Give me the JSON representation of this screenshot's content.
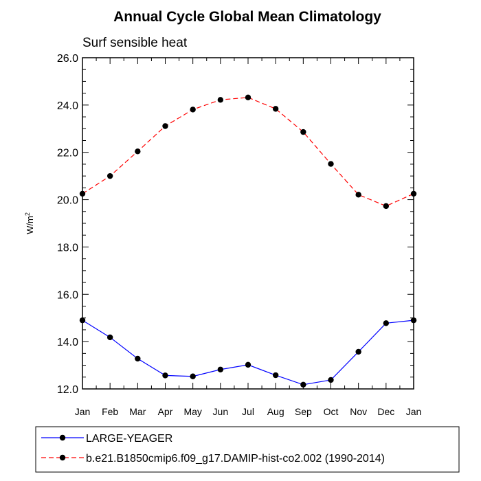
{
  "chart_data": {
    "type": "line",
    "title": "Annual Cycle Global Mean Climatology",
    "subtitle": "Surf sensible heat",
    "ylabel": "W/m",
    "ylabel_sup": "2",
    "xlabel": "",
    "ylim": [
      12.0,
      26.0
    ],
    "yticks": [
      "12.0",
      "14.0",
      "16.0",
      "18.0",
      "20.0",
      "22.0",
      "24.0",
      "26.0"
    ],
    "categories": [
      "Jan",
      "Feb",
      "Mar",
      "Apr",
      "May",
      "Jun",
      "Jul",
      "Aug",
      "Sep",
      "Oct",
      "Nov",
      "Dec",
      "Jan"
    ],
    "grid": false,
    "legend_position": "bottom",
    "series": [
      {
        "name": "LARGE-YEAGER",
        "color": "#0000ff",
        "dashed": false,
        "values": [
          14.9,
          14.18,
          13.28,
          12.57,
          12.53,
          12.82,
          13.02,
          12.58,
          12.18,
          12.38,
          13.57,
          14.78,
          14.9
        ]
      },
      {
        "name": "b.e21.B1850cmip6.f09_g17.DAMIP-hist-co2.002 (1990-2014)",
        "color": "#ff0000",
        "dashed": true,
        "values": [
          20.25,
          21.0,
          22.04,
          23.11,
          23.81,
          24.22,
          24.32,
          23.84,
          22.86,
          21.51,
          20.21,
          19.73,
          20.25
        ]
      }
    ]
  }
}
